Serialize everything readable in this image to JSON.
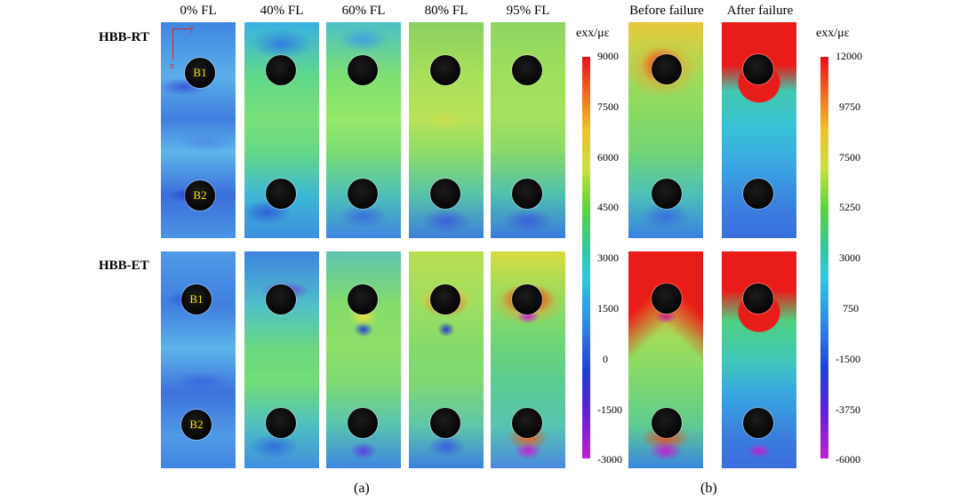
{
  "columns": [
    "0% FL",
    "40% FL",
    "60% FL",
    "80% FL",
    "95% FL",
    "Before failure",
    "After failure"
  ],
  "rows": [
    "HBB-RT",
    "HBB-ET"
  ],
  "hole_labels": [
    "B1",
    "B2"
  ],
  "axes": {
    "x": "x",
    "y": "y"
  },
  "colorbar_a": {
    "title": "exx/με",
    "ticks": [
      "9000",
      "7500",
      "6000",
      "4500",
      "3000",
      "1500",
      "0",
      "-1500",
      "-3000"
    ]
  },
  "colorbar_b": {
    "title": "exx/με",
    "ticks": [
      "12000",
      "9750",
      "7500",
      "5250",
      "3000",
      "750",
      "-1500",
      "-3750",
      "-6000"
    ]
  },
  "subfig_labels": [
    "(a)",
    "(b)"
  ]
}
